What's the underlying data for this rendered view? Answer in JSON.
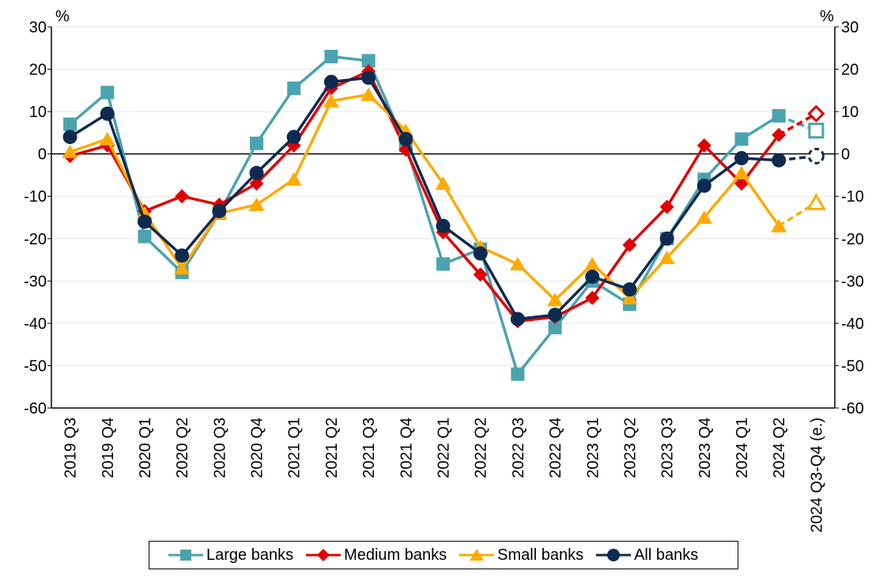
{
  "chart_data": {
    "type": "line",
    "unit_left": "%",
    "unit_right": "%",
    "ylim": [
      -60,
      30
    ],
    "yticks": [
      30,
      20,
      10,
      0,
      -10,
      -20,
      -30,
      -40,
      -50,
      -60
    ],
    "categories": [
      "2019 Q3",
      "2019 Q4",
      "2020 Q1",
      "2020 Q2",
      "2020 Q3",
      "2020 Q4",
      "2021 Q1",
      "2021 Q2",
      "2021 Q3",
      "2021 Q4",
      "2022 Q1",
      "2022 Q2",
      "2022 Q3",
      "2022 Q4",
      "2023 Q1",
      "2023 Q2",
      "2023 Q3",
      "2023 Q4",
      "2024 Q1",
      "2024 Q2",
      "2024 Q3-Q4 (e.)"
    ],
    "estimate_category_index": 20,
    "series": [
      {
        "name": "Large banks",
        "color": "#4AA3B0",
        "marker": "square",
        "values": [
          7,
          14.5,
          -19.5,
          -28,
          -14,
          2.5,
          15.5,
          23,
          22,
          2,
          -26,
          -22.5,
          -52,
          -41,
          -30,
          -35.5,
          -20,
          -6,
          3.5,
          9,
          5.5
        ]
      },
      {
        "name": "Medium banks",
        "color": "#E00000",
        "marker": "diamond",
        "values": [
          -0.5,
          2,
          -13.5,
          -10,
          -12,
          -7,
          2,
          15.5,
          19.5,
          1,
          -18.5,
          -28.5,
          -39.5,
          -38.5,
          -34,
          -21.5,
          -12.5,
          2,
          -7,
          4.5,
          9.5
        ]
      },
      {
        "name": "Small banks",
        "color": "#FFAA00",
        "marker": "triangle",
        "values": [
          0.5,
          3.5,
          -14,
          -27,
          -14,
          -12,
          -6,
          12.5,
          14,
          5.5,
          -7,
          -22,
          -26,
          -34.5,
          -26,
          -34,
          -24.5,
          -15,
          -4.5,
          -17,
          -11.5
        ]
      },
      {
        "name": "All banks",
        "color": "#0F2A50",
        "marker": "circle",
        "values": [
          4,
          9.5,
          -16,
          -24,
          -13.5,
          -4.5,
          4,
          17,
          18,
          3.5,
          -17,
          -23.5,
          -39,
          -38,
          -29,
          -32,
          -20,
          -7.5,
          -1,
          -1.5,
          -0.5
        ]
      }
    ]
  },
  "legend": {
    "large": "Large banks",
    "medium": "Medium banks",
    "small": "Small banks",
    "all": "All banks"
  }
}
